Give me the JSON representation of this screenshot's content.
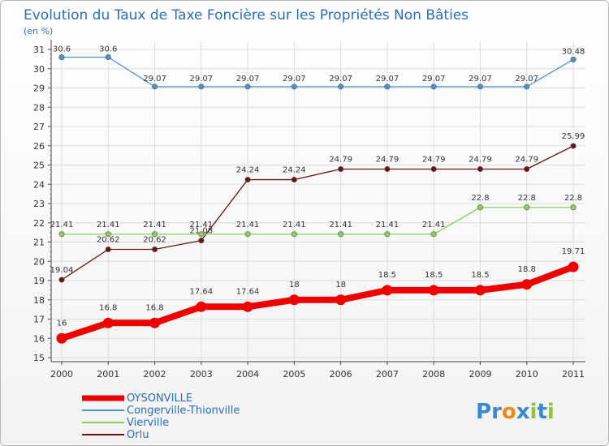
{
  "chart_data": {
    "type": "line",
    "title": "Evolution du Taux de Taxe Foncière sur les Propriétés Non Bâties",
    "ylabel": "(en %)",
    "xlabel": "",
    "x": [
      "2000",
      "2001",
      "2002",
      "2003",
      "2004",
      "2005",
      "2006",
      "2007",
      "2008",
      "2009",
      "2010",
      "2011"
    ],
    "ylim": [
      15,
      31
    ],
    "yticks": [
      15,
      16,
      17,
      18,
      19,
      20,
      21,
      22,
      23,
      24,
      25,
      26,
      27,
      28,
      29,
      30,
      31
    ],
    "grid": true,
    "series": [
      {
        "name": "Congerville-Thionville",
        "color": "#4a94cf",
        "values": [
          30.6,
          30.6,
          29.07,
          29.07,
          29.07,
          29.07,
          29.07,
          29.07,
          29.07,
          29.07,
          29.07,
          30.48
        ],
        "labels": [
          "30.6",
          "30.6",
          "29.07",
          "29.07",
          "29.07",
          "29.07",
          "29.07",
          "29.07",
          "29.07",
          "29.07",
          "29.07",
          "30.48"
        ]
      },
      {
        "name": "Orlu",
        "color": "#6b1414",
        "values": [
          19.04,
          20.62,
          20.62,
          21.08,
          24.24,
          24.24,
          24.79,
          24.79,
          24.79,
          24.79,
          24.79,
          25.99
        ],
        "labels": [
          "19.04",
          "20.62",
          "20.62",
          "21.08",
          "24.24",
          "24.24",
          "24.79",
          "24.79",
          "24.79",
          "24.79",
          "24.79",
          "25.99"
        ]
      },
      {
        "name": "Vierville",
        "color": "#8ed05a",
        "values": [
          21.41,
          21.41,
          21.41,
          21.41,
          21.41,
          21.41,
          21.41,
          21.41,
          21.41,
          22.8,
          22.8,
          22.8
        ],
        "labels": [
          "21.41",
          "21.41",
          "21.41",
          "21.41",
          "21.41",
          "21.41",
          "21.41",
          "21.41",
          "21.41",
          "22.8",
          "22.8",
          "22.8"
        ]
      },
      {
        "name": "OYSONVILLE",
        "color": "#ee0000",
        "values": [
          16,
          16.8,
          16.8,
          17.64,
          17.64,
          18,
          18,
          18.5,
          18.5,
          18.5,
          18.8,
          19.71
        ],
        "labels": [
          "16",
          "16.8",
          "16.8",
          "17.64",
          "17.64",
          "18",
          "18",
          "18.5",
          "18.5",
          "18.5",
          "18.8",
          "19.71"
        ]
      }
    ],
    "legend": [
      "OYSONVILLE",
      "Congerville-Thionville",
      "Vierville",
      "Orlu"
    ],
    "legend_placement": "bottom-left"
  },
  "brand": {
    "text": "Proxiti",
    "letters": [
      "P",
      "r",
      "o",
      "x",
      "i",
      "t",
      "i"
    ],
    "colors": [
      "#3a88d0",
      "#3a88d0",
      "#f08a10",
      "#3a88d0",
      "#8cc63e",
      "#3a88d0",
      "#8cc63e"
    ]
  }
}
